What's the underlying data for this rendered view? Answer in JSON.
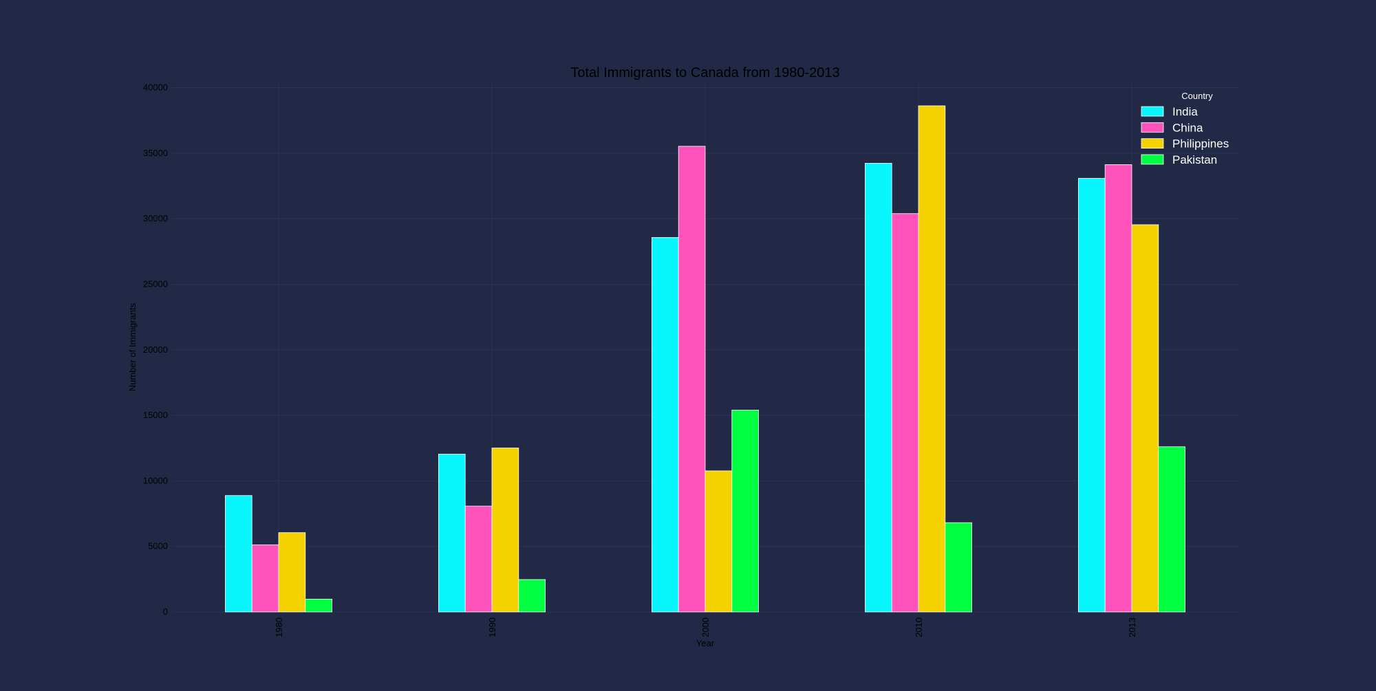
{
  "chart_data": {
    "type": "bar",
    "title": "Total Immigrants to Canada from 1980-2013",
    "xlabel": "Year",
    "ylabel": "Number of Immigrants",
    "categories": [
      "1980",
      "1990",
      "2000",
      "2010",
      "2013"
    ],
    "yticks": [
      "0",
      "5000",
      "10000",
      "15000",
      "20000",
      "25000",
      "30000",
      "35000",
      "40000"
    ],
    "ylim": [
      0,
      40500
    ],
    "grid": true,
    "legend": {
      "title": "Country",
      "placement": "top-right"
    },
    "series": [
      {
        "name": "India",
        "color": "#08F7FE",
        "values": [
          8880,
          12041,
          28572,
          34235,
          33087
        ]
      },
      {
        "name": "China",
        "color": "#FE53BB",
        "values": [
          5123,
          8076,
          35529,
          30391,
          34129
        ]
      },
      {
        "name": "Philippines",
        "color": "#F5D300",
        "values": [
          6051,
          12509,
          10763,
          38617,
          29544
        ]
      },
      {
        "name": "Pakistan",
        "color": "#00FF41",
        "values": [
          978,
          2470,
          15400,
          6811,
          12603
        ]
      }
    ]
  }
}
